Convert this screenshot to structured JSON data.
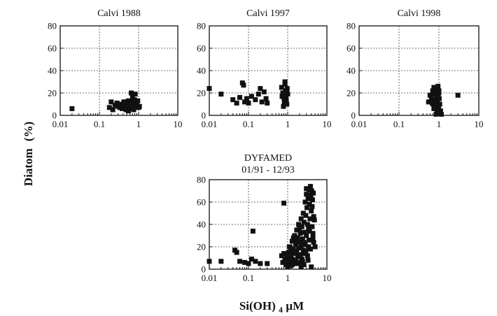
{
  "figure": {
    "ylabel_main": "Diatom",
    "ylabel_unit": "(%)",
    "xlabel_main": "Si(OH)",
    "xlabel_sub": "4",
    "xlabel_unit": " µM"
  },
  "chart_data": [
    {
      "type": "scatter",
      "title": "Calvi 1988",
      "title_line2": "",
      "x_scale": "log",
      "xlim": [
        0.01,
        10
      ],
      "ylim": [
        0,
        80
      ],
      "xticks": [
        "0.01",
        "0.1",
        "1",
        "10"
      ],
      "yticks": [
        "0",
        "20",
        "40",
        "60",
        "80"
      ],
      "grid": true,
      "series": [
        {
          "points": [
            [
              0.02,
              6
            ],
            [
              0.18,
              7
            ],
            [
              0.2,
              12
            ],
            [
              0.22,
              5
            ],
            [
              0.25,
              9
            ],
            [
              0.28,
              11
            ],
            [
              0.3,
              8
            ],
            [
              0.33,
              7
            ],
            [
              0.35,
              10
            ],
            [
              0.38,
              6
            ],
            [
              0.4,
              9
            ],
            [
              0.42,
              12
            ],
            [
              0.45,
              7
            ],
            [
              0.48,
              5
            ],
            [
              0.5,
              10
            ],
            [
              0.52,
              8
            ],
            [
              0.55,
              13
            ],
            [
              0.58,
              6
            ],
            [
              0.6,
              11
            ],
            [
              0.62,
              9
            ],
            [
              0.65,
              20
            ],
            [
              0.68,
              7
            ],
            [
              0.7,
              12
            ],
            [
              0.72,
              10
            ],
            [
              0.75,
              5
            ],
            [
              0.78,
              14
            ],
            [
              0.8,
              8
            ],
            [
              0.82,
              19
            ],
            [
              0.85,
              11
            ],
            [
              0.9,
              9
            ],
            [
              0.95,
              13
            ],
            [
              1.0,
              7
            ],
            [
              1.05,
              8
            ],
            [
              0.55,
              4
            ],
            [
              0.45,
              12
            ],
            [
              0.7,
              16
            ]
          ]
        }
      ]
    },
    {
      "type": "scatter",
      "title": "Calvi 1997",
      "title_line2": "",
      "x_scale": "log",
      "xlim": [
        0.01,
        10
      ],
      "ylim": [
        0,
        80
      ],
      "xticks": [
        "0.01",
        "0.1",
        "1",
        "10"
      ],
      "yticks": [
        "0",
        "20",
        "40",
        "60",
        "80"
      ],
      "grid": true,
      "series": [
        {
          "points": [
            [
              0.01,
              24
            ],
            [
              0.02,
              19
            ],
            [
              0.04,
              14
            ],
            [
              0.05,
              11
            ],
            [
              0.06,
              16
            ],
            [
              0.07,
              29
            ],
            [
              0.075,
              27
            ],
            [
              0.08,
              12
            ],
            [
              0.09,
              15
            ],
            [
              0.1,
              11
            ],
            [
              0.12,
              17
            ],
            [
              0.15,
              14
            ],
            [
              0.18,
              19
            ],
            [
              0.2,
              24
            ],
            [
              0.22,
              12
            ],
            [
              0.25,
              21
            ],
            [
              0.28,
              15
            ],
            [
              0.3,
              11
            ],
            [
              0.7,
              25
            ],
            [
              0.75,
              20
            ],
            [
              0.8,
              16
            ],
            [
              0.82,
              12
            ],
            [
              0.85,
              28
            ],
            [
              0.88,
              22
            ],
            [
              0.9,
              18
            ],
            [
              0.92,
              14
            ],
            [
              0.95,
              10
            ],
            [
              0.97,
              24
            ],
            [
              1.0,
              19
            ],
            [
              0.78,
              8
            ],
            [
              0.85,
              30
            ],
            [
              0.9,
              13
            ],
            [
              0.72,
              17
            ],
            [
              0.95,
              21
            ]
          ]
        }
      ]
    },
    {
      "type": "scatter",
      "title": "Calvi 1998",
      "title_line2": "",
      "x_scale": "log",
      "xlim": [
        0.01,
        10
      ],
      "ylim": [
        0,
        80
      ],
      "xticks": [
        "0.01",
        "0.1",
        "1",
        "10"
      ],
      "yticks": [
        "0",
        "20",
        "40",
        "60",
        "80"
      ],
      "grid": true,
      "series": [
        {
          "points": [
            [
              0.55,
              12
            ],
            [
              0.6,
              18
            ],
            [
              0.65,
              15
            ],
            [
              0.7,
              22
            ],
            [
              0.72,
              10
            ],
            [
              0.75,
              25
            ],
            [
              0.78,
              19
            ],
            [
              0.8,
              14
            ],
            [
              0.82,
              8
            ],
            [
              0.85,
              21
            ],
            [
              0.88,
              16
            ],
            [
              0.9,
              24
            ],
            [
              0.92,
              12
            ],
            [
              0.95,
              18
            ],
            [
              0.98,
              6
            ],
            [
              1.0,
              20
            ],
            [
              1.02,
              15
            ],
            [
              1.05,
              10
            ],
            [
              1.1,
              4
            ],
            [
              1.15,
              1
            ],
            [
              0.85,
              1
            ],
            [
              0.9,
              3
            ],
            [
              0.95,
              26
            ],
            [
              1.0,
              22
            ],
            [
              3.0,
              18
            ],
            [
              0.75,
              6
            ],
            [
              0.68,
              11
            ]
          ]
        }
      ]
    },
    {
      "type": "scatter",
      "title": "DYFAMED",
      "title_line2": "01/91 - 12/93",
      "x_scale": "log",
      "xlim": [
        0.01,
        10
      ],
      "ylim": [
        0,
        80
      ],
      "xticks": [
        "0.01",
        "0.1",
        "1",
        "10"
      ],
      "yticks": [
        "0",
        "20",
        "40",
        "60",
        "80"
      ],
      "grid": true,
      "series": [
        {
          "points": [
            [
              0.01,
              7
            ],
            [
              0.02,
              7
            ],
            [
              0.045,
              17
            ],
            [
              0.05,
              15
            ],
            [
              0.06,
              7
            ],
            [
              0.08,
              6
            ],
            [
              0.1,
              5
            ],
            [
              0.12,
              9
            ],
            [
              0.13,
              34
            ],
            [
              0.15,
              7
            ],
            [
              0.2,
              5
            ],
            [
              0.3,
              5
            ],
            [
              0.8,
              59
            ],
            [
              0.7,
              12
            ],
            [
              0.75,
              6
            ],
            [
              0.8,
              14
            ],
            [
              0.85,
              9
            ],
            [
              0.9,
              4
            ],
            [
              0.95,
              11
            ],
            [
              1.0,
              8
            ],
            [
              1.0,
              2
            ],
            [
              1.05,
              15
            ],
            [
              1.1,
              10
            ],
            [
              1.1,
              6
            ],
            [
              1.15,
              20
            ],
            [
              1.2,
              12
            ],
            [
              1.2,
              3
            ],
            [
              1.3,
              25
            ],
            [
              1.3,
              9
            ],
            [
              1.4,
              18
            ],
            [
              1.4,
              5
            ],
            [
              1.5,
              30
            ],
            [
              1.5,
              14
            ],
            [
              1.6,
              22
            ],
            [
              1.6,
              8
            ],
            [
              1.7,
              35
            ],
            [
              1.7,
              16
            ],
            [
              1.8,
              28
            ],
            [
              1.8,
              11
            ],
            [
              1.9,
              40
            ],
            [
              1.9,
              19
            ],
            [
              2.0,
              24
            ],
            [
              2.0,
              6
            ],
            [
              2.1,
              32
            ],
            [
              2.1,
              13
            ],
            [
              2.2,
              45
            ],
            [
              2.2,
              21
            ],
            [
              2.3,
              38
            ],
            [
              2.3,
              9
            ],
            [
              2.4,
              27
            ],
            [
              2.5,
              50
            ],
            [
              2.5,
              17
            ],
            [
              2.6,
              42
            ],
            [
              2.6,
              4
            ],
            [
              2.7,
              33
            ],
            [
              2.8,
              60
            ],
            [
              2.8,
              22
            ],
            [
              2.9,
              48
            ],
            [
              3.0,
              67
            ],
            [
              3.0,
              30
            ],
            [
              3.1,
              55
            ],
            [
              3.2,
              40
            ],
            [
              3.2,
              12
            ],
            [
              3.3,
              63
            ],
            [
              3.4,
              36
            ],
            [
              3.5,
              71
            ],
            [
              3.5,
              26
            ],
            [
              3.6,
              58
            ],
            [
              3.7,
              45
            ],
            [
              3.8,
              74
            ],
            [
              3.8,
              18
            ],
            [
              3.9,
              66
            ],
            [
              4.0,
              52
            ],
            [
              4.0,
              2
            ],
            [
              4.1,
              70
            ],
            [
              4.2,
              38
            ],
            [
              4.3,
              62
            ],
            [
              4.4,
              28
            ],
            [
              4.5,
              68
            ],
            [
              4.6,
              47
            ],
            [
              4.8,
              44
            ],
            [
              5.0,
              20
            ],
            [
              3.0,
              72
            ],
            [
              2.7,
              14
            ],
            [
              2.4,
              7
            ],
            [
              1.2,
              16
            ],
            [
              1.6,
              26
            ],
            [
              2.0,
              36
            ],
            [
              3.3,
              8
            ],
            [
              4.6,
              24
            ],
            [
              1.9,
              12
            ],
            [
              2.2,
              2
            ],
            [
              2.9,
              16
            ],
            [
              3.6,
              34
            ],
            [
              4.2,
              56
            ],
            [
              1.4,
              28
            ],
            [
              1.1,
              20
            ],
            [
              0.9,
              6
            ],
            [
              1.3,
              4
            ],
            [
              2.6,
              24
            ],
            [
              3.4,
              20
            ],
            [
              4.4,
              32
            ],
            [
              1.7,
              5
            ]
          ]
        }
      ]
    }
  ]
}
